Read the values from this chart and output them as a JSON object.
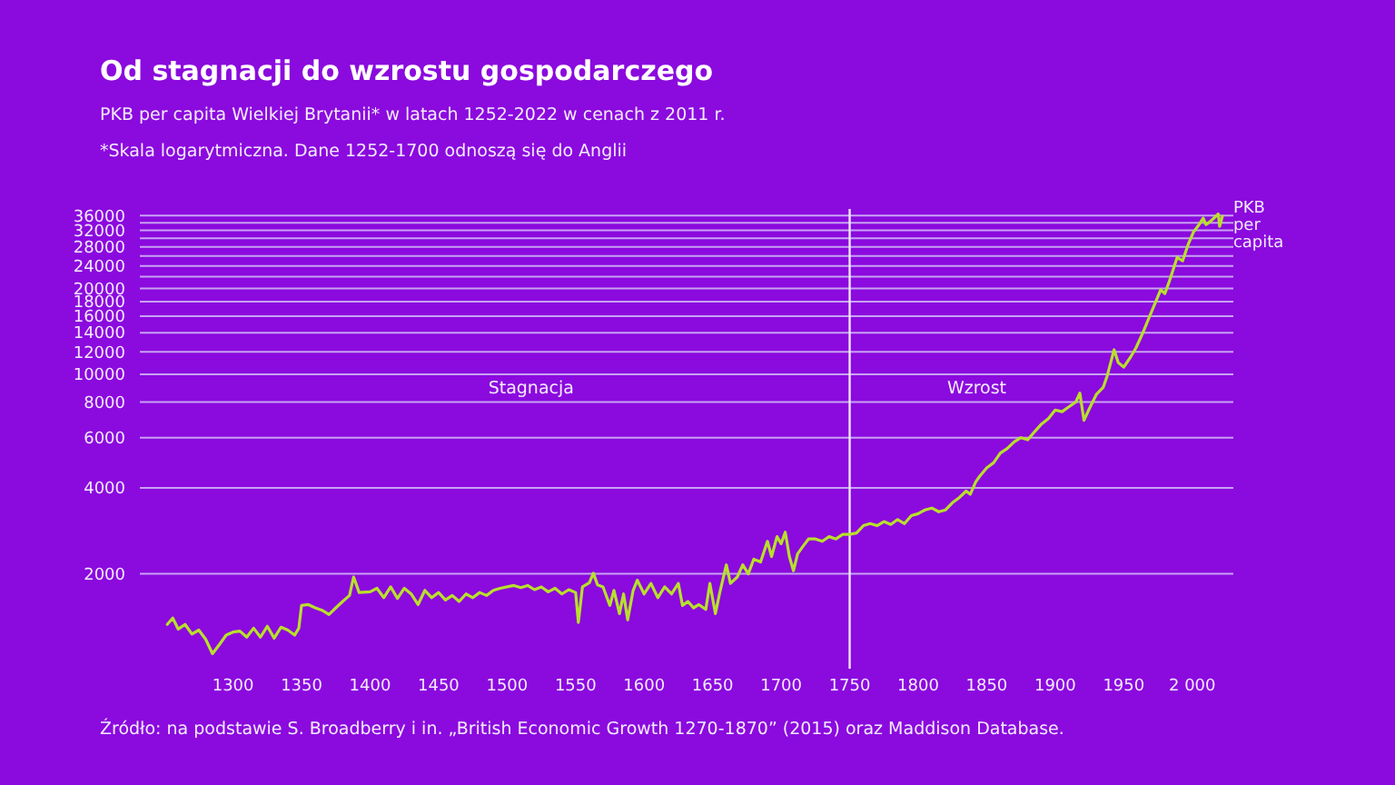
{
  "chart_data": {
    "type": "line",
    "title": "Od stagnacji do wzrostu gospodarczego",
    "subtitle": "PKB per capita Wielkiej Brytanii* w latach 1252-2022 w cenach z 2011 r.",
    "annotations": [
      "*Skala logarytmiczna. Dane 1252-1700 odnoszą się do Anglii",
      "Stagnacja",
      "Wzrost",
      "Źródło: na podstawie S. Broadberry i in. „British Economic Growth 1270-1870” (2015) oraz Maddison Database."
    ],
    "log": "y",
    "grid": "y",
    "legend": false,
    "xlim": [
      1232,
      2030
    ],
    "ylim": [
      930,
      38000
    ],
    "xticks": [
      1300,
      1350,
      1400,
      1450,
      1500,
      1550,
      1600,
      1650,
      1700,
      1750,
      1800,
      1850,
      1900,
      1950,
      {
        "value": 2000,
        "label": "2 000"
      }
    ],
    "yticks": [
      2000,
      4000,
      6000,
      8000,
      10000,
      12000,
      14000,
      16000,
      18000,
      20000,
      {
        "value": 22000,
        "label": null
      },
      24000,
      {
        "value": 26000,
        "label": null
      },
      28000,
      {
        "value": 30000,
        "label": null
      },
      32000,
      {
        "value": 34000,
        "label": null
      },
      36000
    ],
    "ref_lines": [
      {
        "axis": "x",
        "value": 1750,
        "color": "#f0e6ff"
      }
    ],
    "series": [
      {
        "name": "PKB per capita",
        "color": "#b8e02c",
        "x": [
          1252,
          1256,
          1260,
          1265,
          1270,
          1275,
          1280,
          1285,
          1290,
          1295,
          1300,
          1305,
          1310,
          1315,
          1320,
          1325,
          1330,
          1335,
          1340,
          1345,
          1348,
          1350,
          1355,
          1360,
          1365,
          1370,
          1375,
          1380,
          1385,
          1388,
          1392,
          1400,
          1405,
          1410,
          1415,
          1420,
          1425,
          1430,
          1435,
          1440,
          1445,
          1450,
          1455,
          1460,
          1465,
          1470,
          1475,
          1480,
          1485,
          1490,
          1495,
          1500,
          1505,
          1510,
          1515,
          1520,
          1525,
          1530,
          1535,
          1540,
          1545,
          1550,
          1552,
          1555,
          1560,
          1563,
          1566,
          1570,
          1575,
          1578,
          1582,
          1585,
          1588,
          1592,
          1595,
          1600,
          1605,
          1610,
          1615,
          1620,
          1625,
          1628,
          1632,
          1636,
          1640,
          1645,
          1648,
          1652,
          1655,
          1660,
          1663,
          1668,
          1672,
          1676,
          1680,
          1685,
          1690,
          1693,
          1697,
          1700,
          1703,
          1706,
          1709,
          1712,
          1716,
          1720,
          1725,
          1730,
          1735,
          1740,
          1745,
          1750,
          1755,
          1760,
          1765,
          1770,
          1775,
          1780,
          1785,
          1790,
          1795,
          1800,
          1805,
          1810,
          1815,
          1820,
          1825,
          1830,
          1835,
          1838,
          1842,
          1845,
          1850,
          1855,
          1860,
          1865,
          1870,
          1875,
          1880,
          1885,
          1890,
          1895,
          1900,
          1905,
          1910,
          1915,
          1918,
          1921,
          1925,
          1930,
          1935,
          1938,
          1943,
          1946,
          1950,
          1955,
          1959,
          1964,
          1968,
          1973,
          1977,
          1980,
          1983,
          1989,
          1993,
          1997,
          2001,
          2005,
          2008,
          2010,
          2012,
          2015,
          2019,
          2020,
          2022
        ],
        "values": [
          1330,
          1400,
          1280,
          1330,
          1230,
          1270,
          1180,
          1050,
          1130,
          1220,
          1250,
          1260,
          1200,
          1290,
          1200,
          1310,
          1190,
          1300,
          1270,
          1220,
          1290,
          1550,
          1560,
          1520,
          1490,
          1440,
          1520,
          1600,
          1680,
          1950,
          1720,
          1730,
          1780,
          1650,
          1800,
          1640,
          1780,
          1700,
          1560,
          1750,
          1650,
          1720,
          1620,
          1680,
          1600,
          1700,
          1650,
          1720,
          1680,
          1750,
          1780,
          1800,
          1820,
          1790,
          1820,
          1760,
          1800,
          1730,
          1780,
          1700,
          1760,
          1720,
          1350,
          1800,
          1860,
          2010,
          1830,
          1800,
          1550,
          1750,
          1450,
          1700,
          1380,
          1750,
          1900,
          1700,
          1850,
          1650,
          1800,
          1700,
          1850,
          1550,
          1600,
          1520,
          1560,
          1500,
          1850,
          1450,
          1700,
          2150,
          1850,
          1950,
          2150,
          2000,
          2250,
          2200,
          2600,
          2300,
          2700,
          2550,
          2800,
          2300,
          2050,
          2350,
          2500,
          2650,
          2650,
          2600,
          2700,
          2650,
          2750,
          2750,
          2780,
          2950,
          3000,
          2950,
          3050,
          2980,
          3100,
          3000,
          3200,
          3250,
          3350,
          3400,
          3300,
          3350,
          3550,
          3700,
          3900,
          3800,
          4200,
          4400,
          4700,
          4900,
          5300,
          5500,
          5800,
          6000,
          5900,
          6300,
          6700,
          7000,
          7500,
          7400,
          7700,
          8000,
          8600,
          6900,
          7600,
          8500,
          9000,
          9900,
          12200,
          11000,
          10600,
          11500,
          12400,
          14000,
          15600,
          17800,
          19800,
          19200,
          21000,
          25700,
          25000,
          28500,
          31600,
          33500,
          35300,
          33500,
          34000,
          35000,
          36500,
          33000,
          35800
        ]
      }
    ]
  }
}
